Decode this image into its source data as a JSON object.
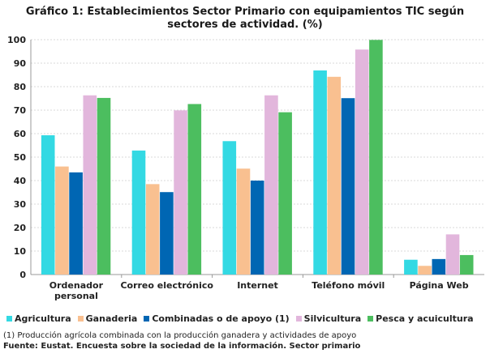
{
  "chart_data": {
    "type": "bar",
    "title_line1": "Gráfico 1:  Establecimientos Sector Primario con equipamientos TIC según",
    "title_line2": "sectores de actividad. (%)",
    "categories": [
      [
        "Ordenador",
        "personal"
      ],
      [
        "Correo electrónico"
      ],
      [
        "Internet"
      ],
      [
        "Teléfono móvil"
      ],
      [
        "Página Web"
      ]
    ],
    "ylim": [
      0,
      100
    ],
    "yticks": [
      0,
      10,
      20,
      30,
      40,
      50,
      60,
      70,
      80,
      90,
      100
    ],
    "grid": true,
    "legend_placement": "bottom",
    "series": [
      {
        "name": "Agricultura",
        "color": "#33d9e3",
        "values": [
          59.3,
          52.8,
          56.8,
          86.9,
          6.3
        ]
      },
      {
        "name": "Ganaderia",
        "color": "#f9c090",
        "values": [
          46.0,
          38.5,
          45.1,
          84.2,
          3.7
        ]
      },
      {
        "name": "Combinadas o de apoyo (1)",
        "color": "#0066b3",
        "values": [
          43.5,
          35.1,
          40.0,
          75.1,
          6.6
        ]
      },
      {
        "name": "Silvicultura",
        "color": "#e2b6dc",
        "values": [
          76.3,
          69.9,
          76.3,
          95.8,
          17.1
        ]
      },
      {
        "name": "Pesca y acuicultura",
        "color": "#4cbe5f",
        "values": [
          75.2,
          72.6,
          69.1,
          99.9,
          8.3
        ]
      }
    ]
  },
  "footnote": "(1)  Producción agrícola combinada con la producción ganadera y actividades de apoyo",
  "source": "Fuente: Eustat. Encuesta sobre la sociedad de la información. Sector primario"
}
